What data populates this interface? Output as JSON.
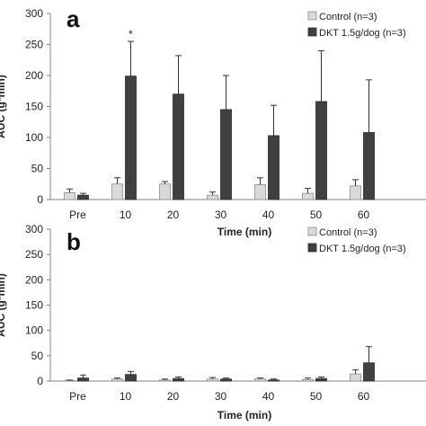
{
  "colors": {
    "control": "#d9d9d9",
    "dkt": "#404040",
    "axis": "#808080"
  },
  "chart_data": [
    {
      "type": "bar",
      "panel_label": "a",
      "xlabel": "Time (min)",
      "ylabel": "AUC (g*min)",
      "ylim": [
        0,
        300
      ],
      "yticks": [
        "0",
        "50",
        "100",
        "150",
        "200",
        "250",
        "300"
      ],
      "categories": [
        "Pre",
        "10",
        "20",
        "30",
        "40",
        "50",
        "60"
      ],
      "legend": {
        "position": "top-right"
      },
      "series": [
        {
          "name": "Control (n=3)",
          "values": [
            11,
            25,
            25,
            7,
            24,
            10,
            22
          ],
          "errors": [
            6,
            10,
            4,
            5,
            11,
            8,
            10
          ]
        },
        {
          "name": "DKT 1.5g/dog (n=3)",
          "values": [
            7,
            199,
            170,
            145,
            103,
            158,
            108
          ],
          "errors": [
            3,
            56,
            62,
            55,
            49,
            82,
            85
          ]
        }
      ],
      "annotations": [
        {
          "category": "10",
          "series": 1,
          "text": "*"
        }
      ]
    },
    {
      "type": "bar",
      "panel_label": "b",
      "xlabel": "Time (min)",
      "ylabel": "AUC (g*min)",
      "ylim": [
        0,
        300
      ],
      "yticks": [
        "0",
        "50",
        "100",
        "150",
        "200",
        "250",
        "300"
      ],
      "categories": [
        "Pre",
        "10",
        "20",
        "30",
        "40",
        "50",
        "60"
      ],
      "legend": {
        "position": "top-right"
      },
      "series": [
        {
          "name": "Control (n=3)",
          "values": [
            1,
            4,
            2,
            4,
            4,
            3,
            14
          ],
          "errors": [
            1,
            2,
            2,
            3,
            2,
            3,
            8
          ]
        },
        {
          "name": "DKT 1.5g/dog (n=3)",
          "values": [
            6,
            13,
            5,
            4,
            2,
            5,
            36
          ],
          "errors": [
            6,
            6,
            3,
            2,
            2,
            3,
            32
          ]
        }
      ],
      "annotations": []
    }
  ]
}
